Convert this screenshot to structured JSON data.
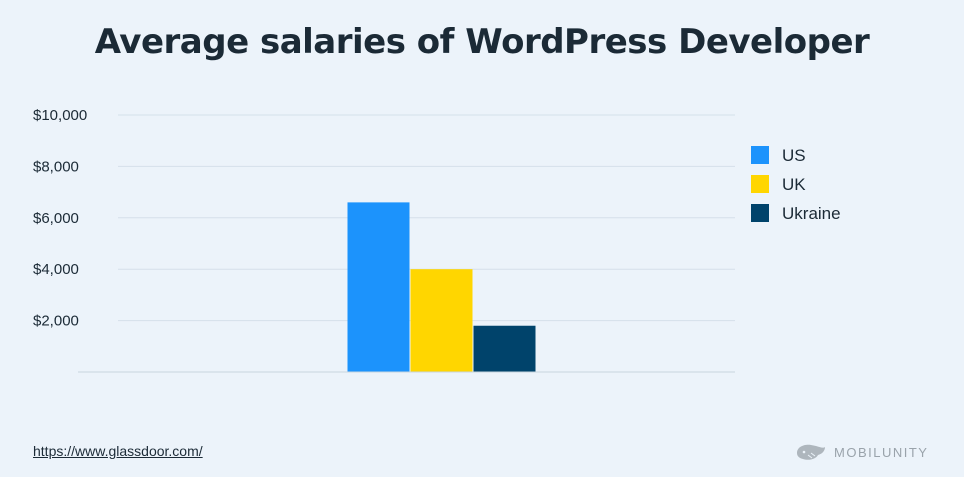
{
  "chart_data": {
    "type": "bar",
    "title": "Average salaries of WordPress Developer",
    "categories": [
      ""
    ],
    "series": [
      {
        "name": "US",
        "values": [
          6600
        ],
        "color": "#1c93fc"
      },
      {
        "name": "UK",
        "values": [
          4000
        ],
        "color": "#ffd600"
      },
      {
        "name": "Ukraine",
        "values": [
          1800
        ],
        "color": "#00436b"
      }
    ],
    "yticks": [
      2000,
      4000,
      6000,
      8000,
      10000
    ],
    "ytick_labels": [
      "$2,000",
      "$4,000",
      "$6,000",
      "$8,000",
      "$10,000"
    ],
    "ylim": [
      0,
      10000
    ],
    "grid": true,
    "legend": "right"
  },
  "footer": {
    "source": "https://www.glassdoor.com/",
    "brand": "MOBILUNITY"
  },
  "colors": {
    "background": "#ecf3fa",
    "text": "#1b2a36",
    "grid": "#d5e0ea"
  }
}
